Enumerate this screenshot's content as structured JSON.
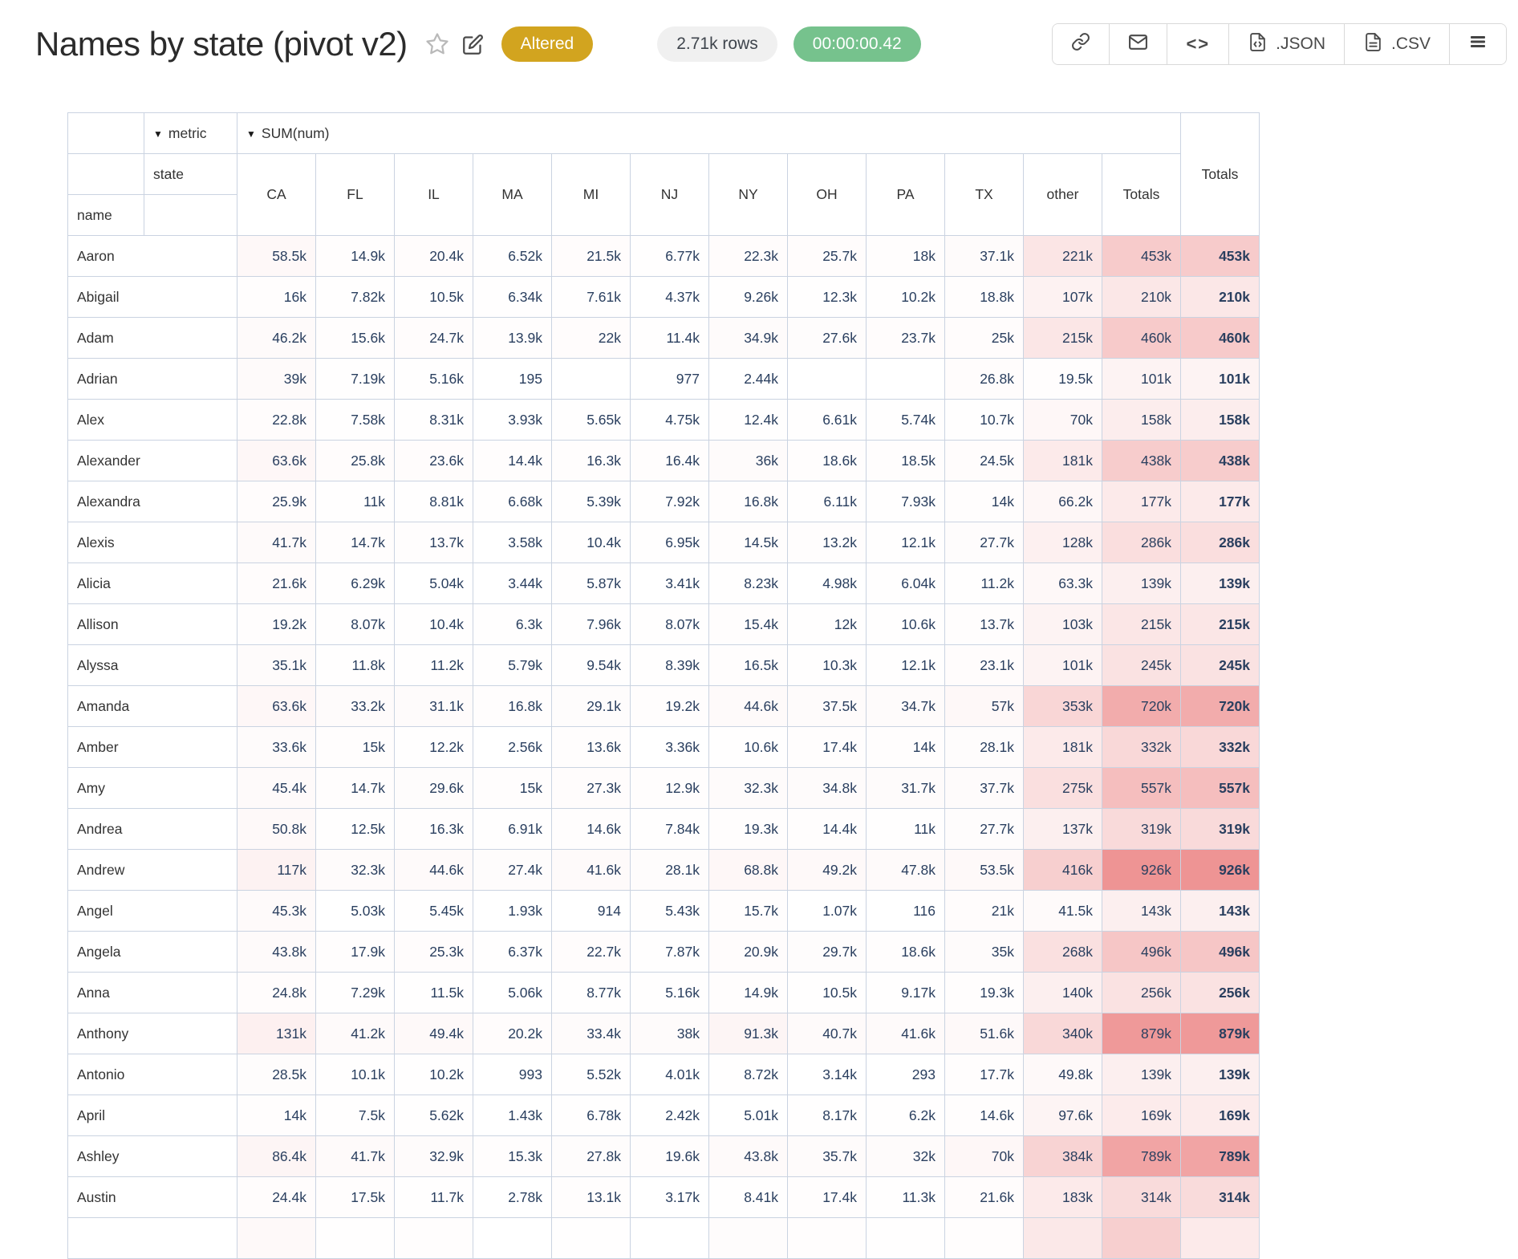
{
  "header": {
    "title": "Names by state (pivot v2)",
    "altered_badge": "Altered",
    "rows_badge": "2.71k rows",
    "timer_badge": "00:00:00.42",
    "toolbar": {
      "json_label": ".JSON",
      "csv_label": ".CSV"
    }
  },
  "pivot": {
    "caret": "▼",
    "metric_label": "metric",
    "metric_value": "SUM(num)",
    "col_dim_label": "state",
    "row_dim_label": "name",
    "totals_label": "Totals",
    "columns": [
      "CA",
      "FL",
      "IL",
      "MA",
      "MI",
      "NJ",
      "NY",
      "OH",
      "PA",
      "TX",
      "other",
      "Totals"
    ],
    "rows": [
      {
        "name": "Aaron",
        "values": [
          "58.5k",
          "14.9k",
          "20.4k",
          "6.52k",
          "21.5k",
          "6.77k",
          "22.3k",
          "25.7k",
          "18k",
          "37.1k",
          "221k",
          "453k"
        ],
        "total": "453k"
      },
      {
        "name": "Abigail",
        "values": [
          "16k",
          "7.82k",
          "10.5k",
          "6.34k",
          "7.61k",
          "4.37k",
          "9.26k",
          "12.3k",
          "10.2k",
          "18.8k",
          "107k",
          "210k"
        ],
        "total": "210k"
      },
      {
        "name": "Adam",
        "values": [
          "46.2k",
          "15.6k",
          "24.7k",
          "13.9k",
          "22k",
          "11.4k",
          "34.9k",
          "27.6k",
          "23.7k",
          "25k",
          "215k",
          "460k"
        ],
        "total": "460k"
      },
      {
        "name": "Adrian",
        "values": [
          "39k",
          "7.19k",
          "5.16k",
          "195",
          "",
          "977",
          "2.44k",
          "",
          "",
          "26.8k",
          "19.5k",
          "101k"
        ],
        "total": "101k"
      },
      {
        "name": "Alex",
        "values": [
          "22.8k",
          "7.58k",
          "8.31k",
          "3.93k",
          "5.65k",
          "4.75k",
          "12.4k",
          "6.61k",
          "5.74k",
          "10.7k",
          "70k",
          "158k"
        ],
        "total": "158k"
      },
      {
        "name": "Alexander",
        "values": [
          "63.6k",
          "25.8k",
          "23.6k",
          "14.4k",
          "16.3k",
          "16.4k",
          "36k",
          "18.6k",
          "18.5k",
          "24.5k",
          "181k",
          "438k"
        ],
        "total": "438k"
      },
      {
        "name": "Alexandra",
        "values": [
          "25.9k",
          "11k",
          "8.81k",
          "6.68k",
          "5.39k",
          "7.92k",
          "16.8k",
          "6.11k",
          "7.93k",
          "14k",
          "66.2k",
          "177k"
        ],
        "total": "177k"
      },
      {
        "name": "Alexis",
        "values": [
          "41.7k",
          "14.7k",
          "13.7k",
          "3.58k",
          "10.4k",
          "6.95k",
          "14.5k",
          "13.2k",
          "12.1k",
          "27.7k",
          "128k",
          "286k"
        ],
        "total": "286k"
      },
      {
        "name": "Alicia",
        "values": [
          "21.6k",
          "6.29k",
          "5.04k",
          "3.44k",
          "5.87k",
          "3.41k",
          "8.23k",
          "4.98k",
          "6.04k",
          "11.2k",
          "63.3k",
          "139k"
        ],
        "total": "139k"
      },
      {
        "name": "Allison",
        "values": [
          "19.2k",
          "8.07k",
          "10.4k",
          "6.3k",
          "7.96k",
          "8.07k",
          "15.4k",
          "12k",
          "10.6k",
          "13.7k",
          "103k",
          "215k"
        ],
        "total": "215k"
      },
      {
        "name": "Alyssa",
        "values": [
          "35.1k",
          "11.8k",
          "11.2k",
          "5.79k",
          "9.54k",
          "8.39k",
          "16.5k",
          "10.3k",
          "12.1k",
          "23.1k",
          "101k",
          "245k"
        ],
        "total": "245k"
      },
      {
        "name": "Amanda",
        "values": [
          "63.6k",
          "33.2k",
          "31.1k",
          "16.8k",
          "29.1k",
          "19.2k",
          "44.6k",
          "37.5k",
          "34.7k",
          "57k",
          "353k",
          "720k"
        ],
        "total": "720k"
      },
      {
        "name": "Amber",
        "values": [
          "33.6k",
          "15k",
          "12.2k",
          "2.56k",
          "13.6k",
          "3.36k",
          "10.6k",
          "17.4k",
          "14k",
          "28.1k",
          "181k",
          "332k"
        ],
        "total": "332k"
      },
      {
        "name": "Amy",
        "values": [
          "45.4k",
          "14.7k",
          "29.6k",
          "15k",
          "27.3k",
          "12.9k",
          "32.3k",
          "34.8k",
          "31.7k",
          "37.7k",
          "275k",
          "557k"
        ],
        "total": "557k"
      },
      {
        "name": "Andrea",
        "values": [
          "50.8k",
          "12.5k",
          "16.3k",
          "6.91k",
          "14.6k",
          "7.84k",
          "19.3k",
          "14.4k",
          "11k",
          "27.7k",
          "137k",
          "319k"
        ],
        "total": "319k"
      },
      {
        "name": "Andrew",
        "values": [
          "117k",
          "32.3k",
          "44.6k",
          "27.4k",
          "41.6k",
          "28.1k",
          "68.8k",
          "49.2k",
          "47.8k",
          "53.5k",
          "416k",
          "926k"
        ],
        "total": "926k"
      },
      {
        "name": "Angel",
        "values": [
          "45.3k",
          "5.03k",
          "5.45k",
          "1.93k",
          "914",
          "5.43k",
          "15.7k",
          "1.07k",
          "116",
          "21k",
          "41.5k",
          "143k"
        ],
        "total": "143k"
      },
      {
        "name": "Angela",
        "values": [
          "43.8k",
          "17.9k",
          "25.3k",
          "6.37k",
          "22.7k",
          "7.87k",
          "20.9k",
          "29.7k",
          "18.6k",
          "35k",
          "268k",
          "496k"
        ],
        "total": "496k"
      },
      {
        "name": "Anna",
        "values": [
          "24.8k",
          "7.29k",
          "11.5k",
          "5.06k",
          "8.77k",
          "5.16k",
          "14.9k",
          "10.5k",
          "9.17k",
          "19.3k",
          "140k",
          "256k"
        ],
        "total": "256k"
      },
      {
        "name": "Anthony",
        "values": [
          "131k",
          "41.2k",
          "49.4k",
          "20.2k",
          "33.4k",
          "38k",
          "91.3k",
          "40.7k",
          "41.6k",
          "51.6k",
          "340k",
          "879k"
        ],
        "total": "879k"
      },
      {
        "name": "Antonio",
        "values": [
          "28.5k",
          "10.1k",
          "10.2k",
          "993",
          "5.52k",
          "4.01k",
          "8.72k",
          "3.14k",
          "293",
          "17.7k",
          "49.8k",
          "139k"
        ],
        "total": "139k"
      },
      {
        "name": "April",
        "values": [
          "14k",
          "7.5k",
          "5.62k",
          "1.43k",
          "6.78k",
          "2.42k",
          "5.01k",
          "8.17k",
          "6.2k",
          "14.6k",
          "97.6k",
          "169k"
        ],
        "total": "169k"
      },
      {
        "name": "Ashley",
        "values": [
          "86.4k",
          "41.7k",
          "32.9k",
          "15.3k",
          "27.8k",
          "19.6k",
          "43.8k",
          "35.7k",
          "32k",
          "70k",
          "384k",
          "789k"
        ],
        "total": "789k"
      },
      {
        "name": "Austin",
        "values": [
          "24.4k",
          "17.5k",
          "11.7k",
          "2.78k",
          "13.1k",
          "3.17k",
          "8.41k",
          "17.4k",
          "11.3k",
          "21.6k",
          "183k",
          "314k"
        ],
        "total": "314k"
      }
    ],
    "heat_color": "#ee9494",
    "border_color": "#cad3e1",
    "value_color": "#2a3f5f"
  }
}
